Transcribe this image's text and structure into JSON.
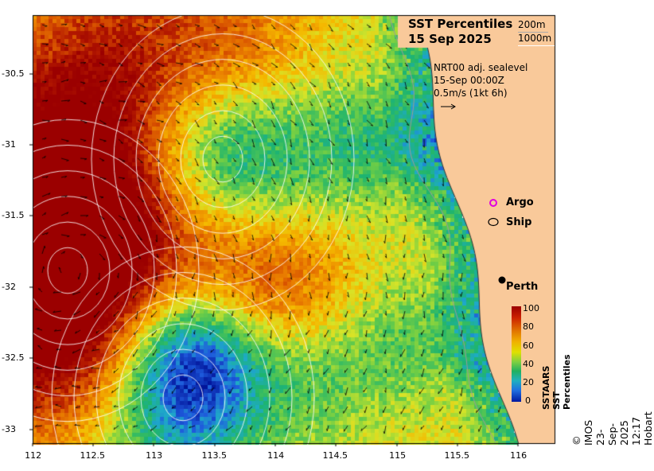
{
  "title": {
    "line1": "SST Percentiles",
    "line2": "15 Sep 2025"
  },
  "contour_legend": {
    "line1": "200m",
    "line2": "1000m"
  },
  "info": {
    "line1": "NRT00 adj. sealevel",
    "line2": "15-Sep 00:00Z",
    "line3": "0.5m/s (1kt 6h)"
  },
  "markers": {
    "argo": "Argo",
    "ship": "Ship",
    "city": "Perth"
  },
  "axes": {
    "x_ticks": [
      "112",
      "112.5",
      "113",
      "113.5",
      "114",
      "114.5",
      "115",
      "115.5",
      "116"
    ],
    "y_ticks": [
      "-30.5",
      "-31",
      "-31.5",
      "-32",
      "-32.5",
      "-33"
    ]
  },
  "colorbar": {
    "label": "SSTAARS SST Percentiles",
    "ticks": [
      "100",
      "80",
      "60",
      "40",
      "20",
      "0"
    ]
  },
  "credit": "© IMOS 23-Sep-2025 12:17 Hobart",
  "colors": {
    "land": "#f9c99a",
    "argo": "#e000e0"
  }
}
